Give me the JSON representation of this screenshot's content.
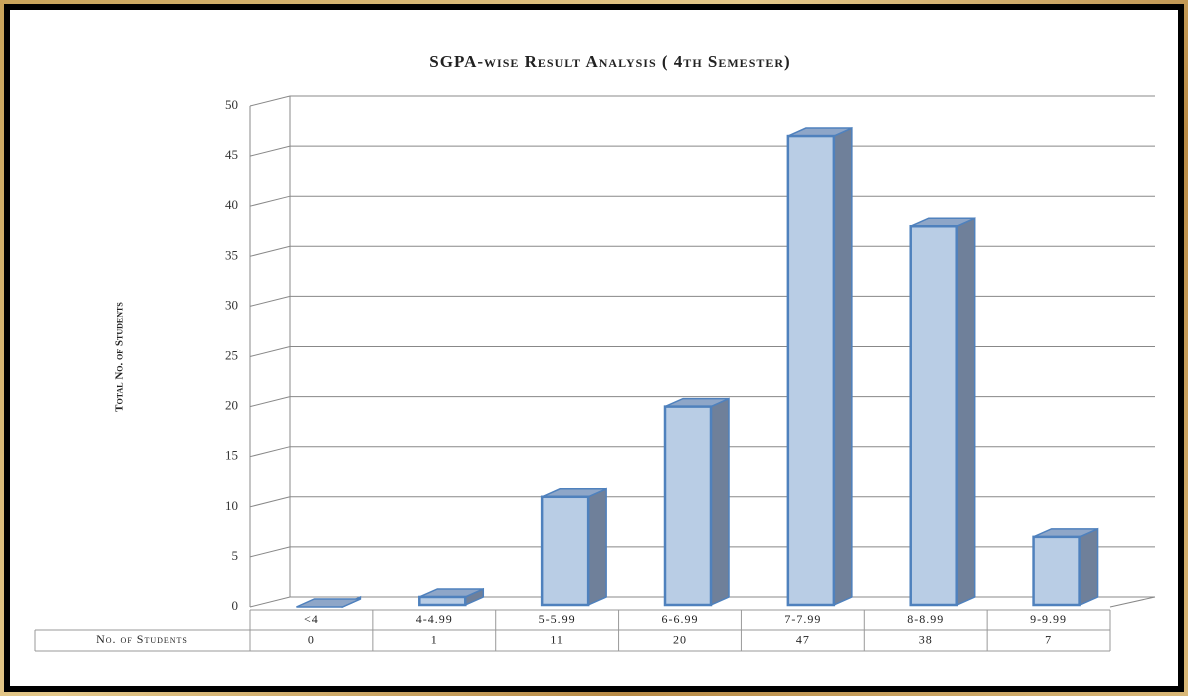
{
  "chart_data": {
    "type": "bar",
    "title": "SGPA-wise Result Analysis ( 4th Semester)",
    "y_label": "Total No. of Students",
    "categories": [
      "<4",
      "4-4.99",
      "5-5.99",
      "6-6.99",
      "7-7.99",
      "8-8.99",
      "9-9.99"
    ],
    "series": [
      {
        "name": "No. of Students",
        "color": "#b9cde5",
        "values": [
          0,
          1,
          11,
          20,
          47,
          38,
          7
        ]
      }
    ],
    "ylim": [
      0,
      50
    ],
    "yticks": [
      0,
      5,
      10,
      15,
      20,
      25,
      30,
      35,
      40,
      45,
      50
    ],
    "grid": true
  }
}
